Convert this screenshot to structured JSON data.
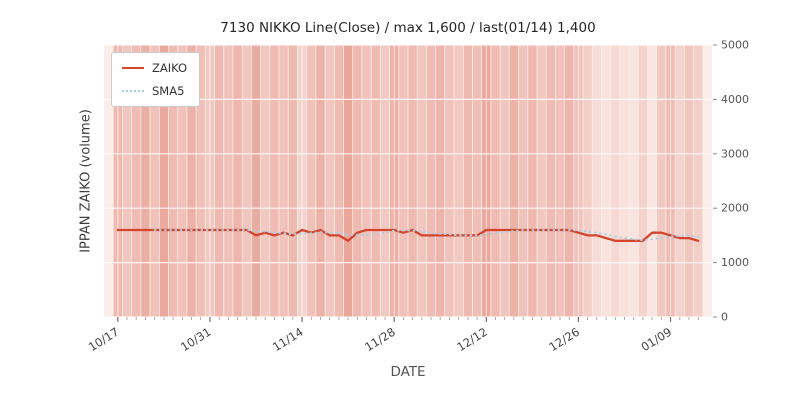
{
  "chart_data": {
    "type": "line",
    "title": "7130 NIKKO Line(Close) / max 1,600 / last(01/14) 1,400",
    "xlabel": "DATE",
    "ylabel": "IPPAN ZAIKO (volume)",
    "ylim": [
      0,
      5000
    ],
    "yticks": [
      0,
      1000,
      2000,
      3000,
      4000,
      5000
    ],
    "ytick_labels": [
      "0",
      "1000",
      "2000",
      "3000",
      "4000",
      "5000"
    ],
    "ytick_side": "right",
    "grid": true,
    "max_value": 1600,
    "last_value": 1400,
    "last_date": "01/14",
    "xticks": [
      {
        "index": 0,
        "label": "10/17"
      },
      {
        "index": 10,
        "label": "10/31"
      },
      {
        "index": 20,
        "label": "11/14"
      },
      {
        "index": 30,
        "label": "11/28"
      },
      {
        "index": 40,
        "label": "12/12"
      },
      {
        "index": 50,
        "label": "12/26"
      },
      {
        "index": 60,
        "label": "01/09"
      }
    ],
    "legend": {
      "position": "upper-left",
      "entries": [
        {
          "label": "ZAIKO",
          "color": "#d4452e",
          "style": "solid"
        },
        {
          "label": "SMA5",
          "color": "#a8cfe4",
          "style": "dotted"
        }
      ]
    },
    "series": [
      {
        "name": "ZAIKO",
        "color": "#d4452e",
        "values": [
          1600,
          1600,
          1600,
          1600,
          1600,
          1600,
          1600,
          1600,
          1600,
          1600,
          1600,
          1600,
          1600,
          1600,
          1600,
          1500,
          1550,
          1500,
          1550,
          1500,
          1600,
          1550,
          1600,
          1500,
          1500,
          1400,
          1550,
          1600,
          1600,
          1600,
          1600,
          1550,
          1600,
          1500,
          1500,
          1500,
          1500,
          1500,
          1500,
          1500,
          1600,
          1600,
          1600,
          1600,
          1600,
          1600,
          1600,
          1600,
          1600,
          1600,
          1550,
          1500,
          1500,
          1450,
          1400,
          1400,
          1400,
          1400,
          1550,
          1550,
          1500,
          1450,
          1450,
          1400
        ]
      },
      {
        "name": "SMA5",
        "color": "#a8cfe4",
        "style": "dotted",
        "window": 5,
        "derived_from": "ZAIKO"
      }
    ],
    "background_bands": {
      "color": "#d34a32",
      "base_alpha": 0.1,
      "alphas": [
        0.32,
        0.24,
        0.3,
        0.38,
        0.26,
        0.42,
        0.3,
        0.26,
        0.36,
        0.28,
        0.22,
        0.32,
        0.26,
        0.34,
        0.24,
        0.4,
        0.22,
        0.3,
        0.26,
        0.32,
        0.16,
        0.26,
        0.36,
        0.24,
        0.3,
        0.44,
        0.32,
        0.26,
        0.3,
        0.22,
        0.36,
        0.26,
        0.32,
        0.24,
        0.3,
        0.34,
        0.26,
        0.22,
        0.32,
        0.28,
        0.42,
        0.3,
        0.24,
        0.36,
        0.26,
        0.32,
        0.22,
        0.3,
        0.26,
        0.34,
        0.26,
        0.18,
        0.1,
        0.06,
        0.12,
        0.08,
        0.05,
        0.16,
        0.04,
        0.22,
        0.3,
        0.16,
        0.24,
        0.18
      ]
    }
  }
}
